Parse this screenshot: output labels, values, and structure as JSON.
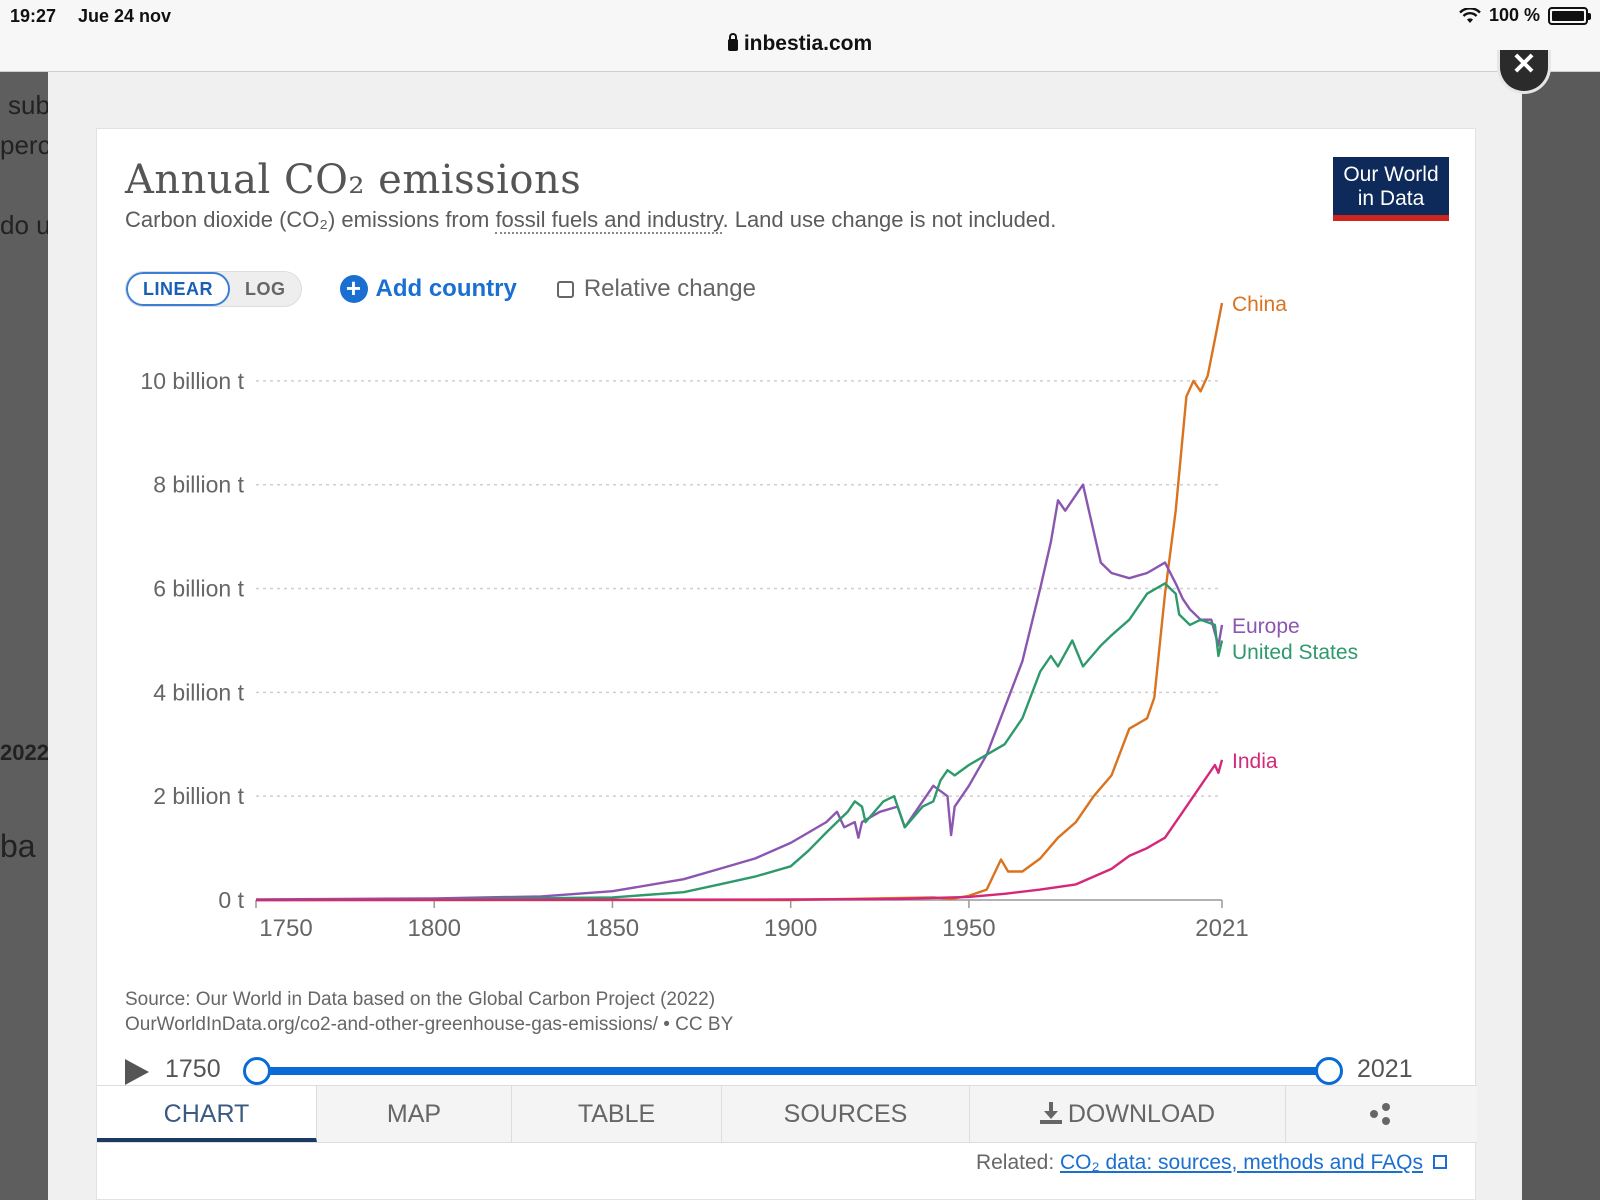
{
  "status_bar": {
    "time": "19:27",
    "date": "Jue 24 nov",
    "battery": "100 %"
  },
  "url": "inbestia.com",
  "background_fragments": [
    "sub",
    "perc",
    "do u",
    "2022",
    "ba"
  ],
  "chart_card": {
    "title": "Annual CO₂ emissions",
    "subtitle_pre": "Carbon dioxide (CO₂) emissions from ",
    "subtitle_link": "fossil fuels and industry",
    "subtitle_post": ". Land use change is not included.",
    "logo_line1": "Our World",
    "logo_line2": "in Data",
    "scale_linear": "LINEAR",
    "scale_log": "LOG",
    "add_country": "Add country",
    "relative_change": "Relative change",
    "source_line1": "Source: Our World in Data based on the Global Carbon Project (2022)",
    "source_line2": "OurWorldInData.org/co2-and-other-greenhouse-gas-emissions/ • CC BY",
    "timeline_start": "1750",
    "timeline_end": "2021",
    "tabs": [
      "CHART",
      "MAP",
      "TABLE",
      "SOURCES",
      "DOWNLOAD"
    ],
    "related_label": "Related: ",
    "related_link": "CO₂ data: sources, methods and FAQs"
  },
  "chart_data": {
    "type": "line",
    "xlim": [
      1750,
      2021
    ],
    "ylim": [
      0,
      11
    ],
    "x_ticks": [
      1750,
      1800,
      1850,
      1900,
      1950,
      2021
    ],
    "y_ticks": [
      {
        "value": 0,
        "label": "0 t"
      },
      {
        "value": 2,
        "label": "2 billion t"
      },
      {
        "value": 4,
        "label": "4 billion t"
      },
      {
        "value": 6,
        "label": "6 billion t"
      },
      {
        "value": 8,
        "label": "8 billion t"
      },
      {
        "value": 10,
        "label": "10 billion t"
      }
    ],
    "grid": "horizontal dotted",
    "legend": "right, at line ends",
    "series": [
      {
        "name": "China",
        "color": "#d9731f",
        "points": [
          [
            1750,
            0
          ],
          [
            1900,
            0.0
          ],
          [
            1940,
            0.05
          ],
          [
            1945,
            0.02
          ],
          [
            1950,
            0.08
          ],
          [
            1955,
            0.2
          ],
          [
            1959,
            0.78
          ],
          [
            1961,
            0.55
          ],
          [
            1965,
            0.55
          ],
          [
            1970,
            0.8
          ],
          [
            1975,
            1.2
          ],
          [
            1980,
            1.5
          ],
          [
            1985,
            2.0
          ],
          [
            1990,
            2.4
          ],
          [
            1995,
            3.3
          ],
          [
            2000,
            3.5
          ],
          [
            2002,
            3.9
          ],
          [
            2005,
            5.9
          ],
          [
            2008,
            7.5
          ],
          [
            2011,
            9.7
          ],
          [
            2013,
            10.0
          ],
          [
            2015,
            9.8
          ],
          [
            2017,
            10.1
          ],
          [
            2019,
            10.8
          ],
          [
            2021,
            11.5
          ]
        ]
      },
      {
        "name": "Europe",
        "color": "#8b56b0",
        "points": [
          [
            1750,
            0.01
          ],
          [
            1800,
            0.03
          ],
          [
            1830,
            0.07
          ],
          [
            1850,
            0.17
          ],
          [
            1870,
            0.4
          ],
          [
            1880,
            0.6
          ],
          [
            1890,
            0.8
          ],
          [
            1900,
            1.1
          ],
          [
            1910,
            1.5
          ],
          [
            1913,
            1.7
          ],
          [
            1915,
            1.4
          ],
          [
            1918,
            1.5
          ],
          [
            1919,
            1.2
          ],
          [
            1920,
            1.5
          ],
          [
            1925,
            1.7
          ],
          [
            1930,
            1.8
          ],
          [
            1932,
            1.4
          ],
          [
            1937,
            1.9
          ],
          [
            1940,
            2.2
          ],
          [
            1944,
            2.0
          ],
          [
            1945,
            1.25
          ],
          [
            1946,
            1.8
          ],
          [
            1950,
            2.2
          ],
          [
            1955,
            2.8
          ],
          [
            1960,
            3.7
          ],
          [
            1965,
            4.6
          ],
          [
            1970,
            6.0
          ],
          [
            1973,
            6.9
          ],
          [
            1975,
            7.7
          ],
          [
            1977,
            7.5
          ],
          [
            1979,
            7.7
          ],
          [
            1980,
            7.8
          ],
          [
            1982,
            8.0
          ],
          [
            1984,
            7.4
          ],
          [
            1987,
            6.5
          ],
          [
            1990,
            6.3
          ],
          [
            1995,
            6.2
          ],
          [
            2000,
            6.3
          ],
          [
            2005,
            6.5
          ],
          [
            2008,
            6.1
          ],
          [
            2010,
            5.8
          ],
          [
            2012,
            5.6
          ],
          [
            2015,
            5.4
          ],
          [
            2018,
            5.4
          ],
          [
            2020,
            4.9
          ],
          [
            2021,
            5.3
          ]
        ]
      },
      {
        "name": "United States",
        "color": "#2e9a6c",
        "points": [
          [
            1750,
            0.0
          ],
          [
            1800,
            0.01
          ],
          [
            1850,
            0.05
          ],
          [
            1870,
            0.15
          ],
          [
            1880,
            0.3
          ],
          [
            1890,
            0.45
          ],
          [
            1900,
            0.65
          ],
          [
            1905,
            0.95
          ],
          [
            1910,
            1.3
          ],
          [
            1913,
            1.5
          ],
          [
            1916,
            1.7
          ],
          [
            1918,
            1.9
          ],
          [
            1920,
            1.8
          ],
          [
            1921,
            1.5
          ],
          [
            1926,
            1.9
          ],
          [
            1929,
            2.0
          ],
          [
            1932,
            1.4
          ],
          [
            1937,
            1.8
          ],
          [
            1940,
            1.9
          ],
          [
            1942,
            2.3
          ],
          [
            1944,
            2.5
          ],
          [
            1946,
            2.4
          ],
          [
            1950,
            2.6
          ],
          [
            1955,
            2.8
          ],
          [
            1960,
            3.0
          ],
          [
            1965,
            3.5
          ],
          [
            1970,
            4.4
          ],
          [
            1973,
            4.7
          ],
          [
            1975,
            4.5
          ],
          [
            1979,
            5.0
          ],
          [
            1982,
            4.5
          ],
          [
            1987,
            4.9
          ],
          [
            1990,
            5.1
          ],
          [
            1995,
            5.4
          ],
          [
            2000,
            5.9
          ],
          [
            2005,
            6.1
          ],
          [
            2008,
            5.9
          ],
          [
            2009,
            5.5
          ],
          [
            2012,
            5.3
          ],
          [
            2015,
            5.4
          ],
          [
            2019,
            5.3
          ],
          [
            2020,
            4.7
          ],
          [
            2021,
            5.0
          ]
        ]
      },
      {
        "name": "India",
        "color": "#d4287a",
        "points": [
          [
            1750,
            0
          ],
          [
            1900,
            0.01
          ],
          [
            1930,
            0.02
          ],
          [
            1950,
            0.06
          ],
          [
            1960,
            0.12
          ],
          [
            1970,
            0.2
          ],
          [
            1980,
            0.3
          ],
          [
            1990,
            0.6
          ],
          [
            1995,
            0.85
          ],
          [
            2000,
            1.0
          ],
          [
            2005,
            1.2
          ],
          [
            2010,
            1.7
          ],
          [
            2015,
            2.2
          ],
          [
            2019,
            2.6
          ],
          [
            2020,
            2.45
          ],
          [
            2021,
            2.7
          ]
        ]
      }
    ]
  }
}
